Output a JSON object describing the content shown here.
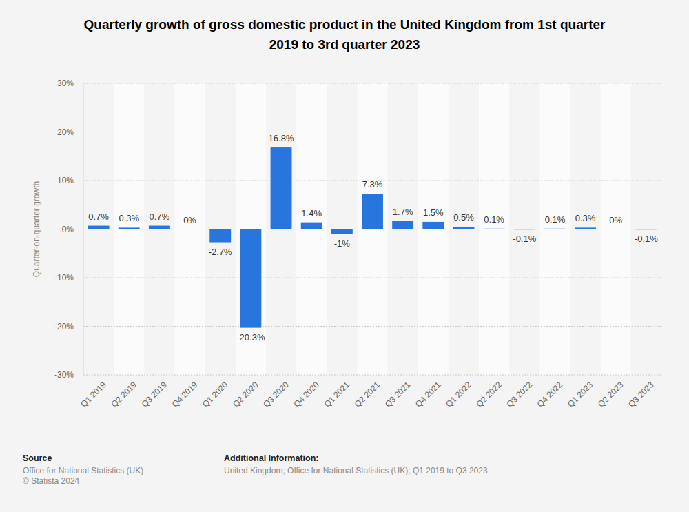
{
  "chart_data": {
    "type": "bar",
    "title": "Quarterly growth of gross domestic product in the United Kingdom from 1st quarter 2019 to 3rd quarter 2023",
    "y_label": "Quarter-on-quarter growth",
    "categories": [
      "Q1 2019",
      "Q2 2019",
      "Q3 2019",
      "Q4 2019",
      "Q1 2020",
      "Q2 2020",
      "Q3 2020",
      "Q4 2020",
      "Q1 2021",
      "Q2 2021",
      "Q3 2021",
      "Q4 2021",
      "Q1 2022",
      "Q2 2022",
      "Q3 2022",
      "Q4 2022",
      "Q1 2023",
      "Q2 2023",
      "Q3 2023"
    ],
    "values": [
      0.7,
      0.3,
      0.7,
      0,
      -2.7,
      -20.3,
      16.8,
      1.4,
      -1,
      7.3,
      1.7,
      1.5,
      0.5,
      0.1,
      -0.1,
      0.1,
      0.3,
      0,
      -0.1
    ],
    "value_labels": [
      "0.7%",
      "0.3%",
      "0.7%",
      "0%",
      "-2.7%",
      "-20.3%",
      "16.8%",
      "1.4%",
      "-1%",
      "7.3%",
      "1.7%",
      "1.5%",
      "0.5%",
      "0.1%",
      "-0.1%",
      "0.1%",
      "0.3%",
      "0%",
      "-0.1%"
    ],
    "color": "#2876dd",
    "ylim": [
      -30,
      30
    ],
    "yticks": [
      {
        "value": -30,
        "label": "-30%"
      },
      {
        "value": -20,
        "label": "-20%"
      },
      {
        "value": -10,
        "label": "-10%"
      },
      {
        "value": 0,
        "label": "0%"
      },
      {
        "value": 10,
        "label": "10%"
      },
      {
        "value": 20,
        "label": "20%"
      },
      {
        "value": 30,
        "label": "30%"
      }
    ],
    "grid": true,
    "data_labels": true,
    "source_title": "Source",
    "source": [
      "Office for National Statistics (UK)",
      "© Statista 2024"
    ],
    "info_title": "Additional Information:",
    "info": [
      "United Kingdom; Office for National Statistics (UK); Q1 2019 to Q3 2023"
    ]
  }
}
